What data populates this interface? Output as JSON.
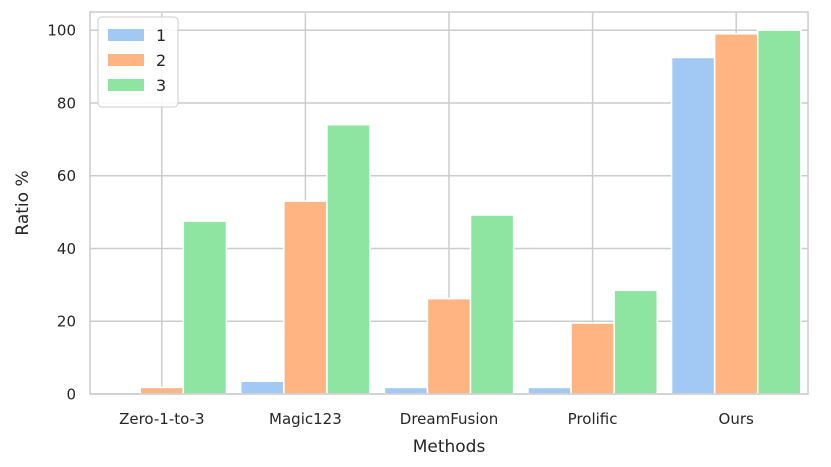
{
  "chart_data": {
    "type": "bar",
    "xlabel": "Methods",
    "ylabel": "Ratio %",
    "categories": [
      "Zero-1-to-3",
      "Magic123",
      "DreamFusion",
      "Prolific",
      "Ours"
    ],
    "series": [
      {
        "name": "1",
        "color": "#a1c9f4",
        "values": [
          0,
          3.5,
          1.8,
          1.8,
          92.5
        ]
      },
      {
        "name": "2",
        "color": "#ffb482",
        "values": [
          1.8,
          53,
          26.2,
          19.5,
          99
        ]
      },
      {
        "name": "3",
        "color": "#8de5a1",
        "values": [
          47.5,
          74,
          49.2,
          28.5,
          100
        ]
      }
    ],
    "ylim": [
      0,
      105
    ],
    "yticks": [
      0,
      20,
      40,
      60,
      80,
      100
    ],
    "grid": true,
    "legend_position": "top-left"
  }
}
